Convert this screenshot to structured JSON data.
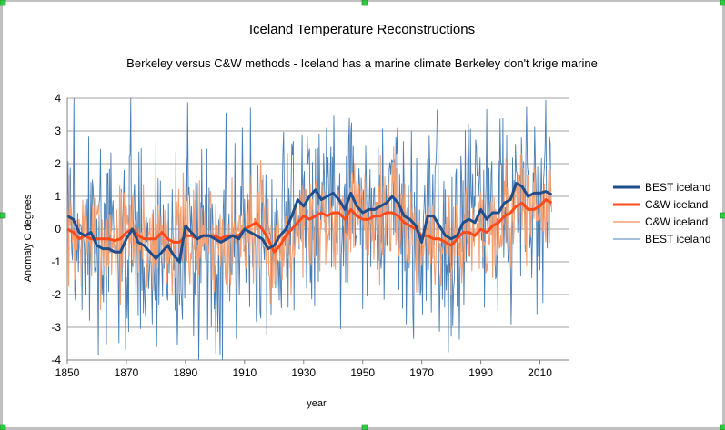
{
  "chart_data": {
    "type": "line",
    "title": "Iceland Temperature Reconstructions",
    "subtitle": "Berkeley versus C&W methods - Iceland has a marine climate Berkeley don't krige marine",
    "xlabel": "year",
    "ylabel": "Anomaly C degrees",
    "xlim": [
      1850,
      2020
    ],
    "ylim": [
      -4,
      4
    ],
    "x_ticks": [
      1850,
      1870,
      1890,
      1910,
      1930,
      1950,
      1970,
      1990,
      2010
    ],
    "y_ticks": [
      -4,
      -3,
      -2,
      -1,
      0,
      1,
      2,
      3,
      4
    ],
    "grid": "horizontal",
    "legend_position": "right",
    "series": [
      {
        "name": "BEST iceland",
        "style": "smoothed",
        "color": "#1f4e8c",
        "x": [
          1850,
          1852,
          1854,
          1856,
          1858,
          1860,
          1862,
          1864,
          1866,
          1868,
          1870,
          1872,
          1874,
          1876,
          1878,
          1880,
          1882,
          1884,
          1886,
          1888,
          1890,
          1892,
          1894,
          1896,
          1898,
          1900,
          1902,
          1904,
          1906,
          1908,
          1910,
          1912,
          1914,
          1916,
          1918,
          1920,
          1922,
          1924,
          1926,
          1928,
          1930,
          1932,
          1934,
          1936,
          1938,
          1940,
          1942,
          1944,
          1946,
          1948,
          1950,
          1952,
          1954,
          1956,
          1958,
          1960,
          1962,
          1964,
          1966,
          1968,
          1970,
          1972,
          1974,
          1976,
          1978,
          1980,
          1982,
          1984,
          1986,
          1988,
          1990,
          1992,
          1994,
          1996,
          1998,
          2000,
          2002,
          2004,
          2006,
          2008,
          2010,
          2012,
          2014
        ],
        "y": [
          0.4,
          0.3,
          -0.1,
          -0.2,
          -0.1,
          -0.5,
          -0.6,
          -0.6,
          -0.7,
          -0.7,
          -0.3,
          0.0,
          -0.4,
          -0.5,
          -0.7,
          -0.9,
          -0.7,
          -0.5,
          -0.8,
          -1.0,
          0.1,
          -0.1,
          -0.3,
          -0.2,
          -0.2,
          -0.3,
          -0.4,
          -0.3,
          -0.2,
          -0.3,
          0.0,
          -0.1,
          -0.2,
          -0.3,
          -0.6,
          -0.5,
          -0.2,
          0.0,
          0.4,
          0.9,
          0.7,
          1.0,
          1.2,
          0.9,
          1.0,
          1.1,
          0.9,
          0.6,
          1.1,
          0.7,
          0.5,
          0.6,
          0.6,
          0.7,
          0.8,
          1.0,
          0.8,
          0.4,
          0.3,
          0.1,
          -0.4,
          0.4,
          0.4,
          0.1,
          -0.2,
          -0.3,
          -0.2,
          0.2,
          0.3,
          0.2,
          0.6,
          0.3,
          0.5,
          0.5,
          0.8,
          0.9,
          1.4,
          1.3,
          1.0,
          1.1,
          1.1,
          1.15,
          1.05
        ]
      },
      {
        "name": "C&W iceland",
        "style": "smoothed",
        "color": "#ff4a1a",
        "x": [
          1850,
          1852,
          1854,
          1856,
          1858,
          1860,
          1862,
          1864,
          1866,
          1868,
          1870,
          1872,
          1874,
          1876,
          1878,
          1880,
          1882,
          1884,
          1886,
          1888,
          1890,
          1892,
          1894,
          1896,
          1898,
          1900,
          1902,
          1904,
          1906,
          1908,
          1910,
          1912,
          1914,
          1916,
          1918,
          1920,
          1922,
          1924,
          1926,
          1928,
          1930,
          1932,
          1934,
          1936,
          1938,
          1940,
          1942,
          1944,
          1946,
          1948,
          1950,
          1952,
          1954,
          1956,
          1958,
          1960,
          1962,
          1964,
          1966,
          1968,
          1970,
          1972,
          1974,
          1976,
          1978,
          1980,
          1982,
          1984,
          1986,
          1988,
          1990,
          1992,
          1994,
          1996,
          1998,
          2000,
          2002,
          2004,
          2006,
          2008,
          2010,
          2012,
          2014
        ],
        "y": [
          0.0,
          -0.1,
          -0.3,
          -0.2,
          -0.3,
          -0.3,
          -0.3,
          -0.3,
          -0.35,
          -0.3,
          -0.1,
          0.0,
          -0.2,
          -0.3,
          -0.3,
          -0.3,
          -0.1,
          -0.3,
          -0.4,
          -0.4,
          -0.2,
          -0.2,
          -0.3,
          -0.2,
          -0.2,
          -0.2,
          -0.3,
          -0.2,
          -0.2,
          -0.2,
          0.0,
          0.1,
          0.2,
          0.0,
          -0.3,
          -0.7,
          -0.5,
          -0.2,
          0.0,
          0.2,
          0.4,
          0.3,
          0.4,
          0.5,
          0.4,
          0.5,
          0.5,
          0.3,
          0.6,
          0.4,
          0.3,
          0.3,
          0.4,
          0.4,
          0.5,
          0.5,
          0.4,
          0.2,
          0.1,
          0.0,
          -0.2,
          -0.2,
          -0.3,
          -0.3,
          -0.4,
          -0.5,
          -0.3,
          -0.1,
          -0.1,
          -0.2,
          0.0,
          -0.1,
          0.1,
          0.2,
          0.4,
          0.5,
          0.7,
          0.8,
          0.6,
          0.6,
          0.7,
          0.9,
          0.8
        ]
      },
      {
        "name": "C&W iceland",
        "style": "annual",
        "color": "#f4a072",
        "x_start": 1850,
        "x_step": 0.25,
        "amplitude": 0.85,
        "seed": 7
      },
      {
        "name": "BEST iceland",
        "style": "annual",
        "color": "#4a7fb5",
        "x_start": 1850,
        "x_step": 0.25,
        "amplitude": 1.6,
        "seed": 3
      }
    ]
  },
  "legend": {
    "items": [
      {
        "label": "BEST iceland",
        "color": "#1f4e8c",
        "weight": 3
      },
      {
        "label": "C&W iceland",
        "color": "#ff4a1a",
        "weight": 3
      },
      {
        "label": "C&W iceland",
        "color": "#f4a072",
        "weight": 1.5
      },
      {
        "label": "BEST iceland",
        "color": "#4a7fb5",
        "weight": 1
      }
    ]
  },
  "colors": {
    "grid": "#a0a0a0",
    "axis": "#808080",
    "frame": "#c0c0c0",
    "handle": "#2ecc40"
  }
}
